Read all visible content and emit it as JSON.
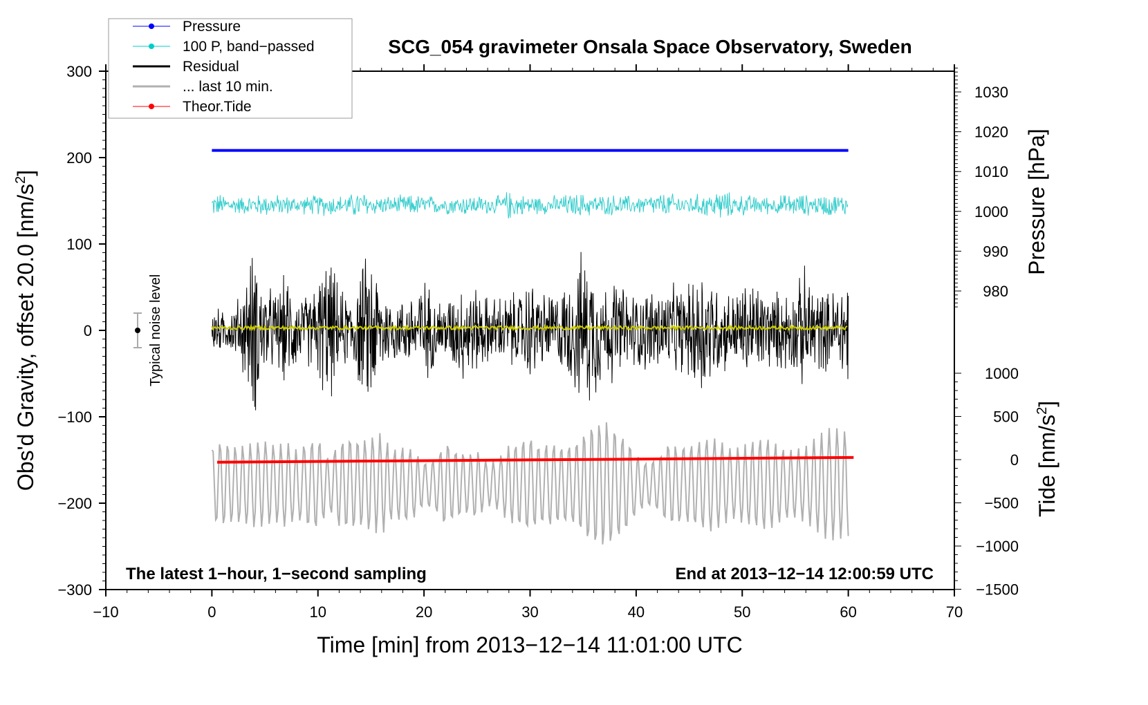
{
  "chart_data": {
    "type": "line",
    "title": "SCG_054 gravimeter Onsala Space Observatory, Sweden",
    "xlabel": "Time [min] from 2013−12−14 11:01:00 UTC",
    "ylabel": "Obs'd Gravity, offset 20.0 [nm/s",
    "ylabel_sup": "2",
    "ylabel_end": "]",
    "y2label_pressure": "Pressure [hPa]",
    "y2label_tide": "Tide [nm/s",
    "y2label_tide_sup": "2",
    "y2label_tide_end": "]",
    "annotation_left": "The latest 1−hour, 1−second sampling",
    "annotation_right": "End at 2013−12−14 12:00:59 UTC",
    "noise_label": "Typical noise level",
    "noise_bar": {
      "x": -7,
      "y": 0,
      "halfwidth": 20
    },
    "xlim": [
      -10,
      70
    ],
    "ylim": [
      -300,
      300
    ],
    "pressure_lim": [
      975,
      1035
    ],
    "tide_lim": [
      -1500,
      1000
    ],
    "xticks": [
      "−10",
      "0",
      "10",
      "20",
      "30",
      "40",
      "50",
      "60",
      "70"
    ],
    "xtick_values": [
      -10,
      0,
      10,
      20,
      30,
      40,
      50,
      60,
      70
    ],
    "yticks": [
      "300",
      "200",
      "100",
      "0",
      "−100",
      "−200",
      "−300"
    ],
    "ytick_values": [
      300,
      200,
      100,
      0,
      -100,
      -200,
      -300
    ],
    "pressure_ticks": [
      "1030",
      "1020",
      "1010",
      "1000",
      "990",
      "980"
    ],
    "pressure_tick_values": [
      1030,
      1020,
      1010,
      1000,
      990,
      980
    ],
    "tide_ticks": [
      "1000",
      "500",
      "0",
      "−500",
      "−1000",
      "−1500"
    ],
    "tide_tick_values": [
      1000,
      500,
      0,
      -500,
      -1000,
      -1500
    ],
    "legend": {
      "placement": "top-left",
      "entries": [
        {
          "label": "Pressure",
          "color": "#0000ff",
          "marker": true
        },
        {
          "label": "100 P, band−passed",
          "color": "#00cccc",
          "marker": true
        },
        {
          "label": "Residual",
          "color": "#000000",
          "marker": false
        },
        {
          "label": "... last 10 min.",
          "color": "#b0b0b0",
          "marker": false
        },
        {
          "label": "Theor.Tide",
          "color": "#ff0000",
          "marker": true
        }
      ]
    },
    "series": [
      {
        "name": "Pressure",
        "axis": "pressure",
        "color": "#0000ff",
        "x_range": [
          0,
          60
        ],
        "values_start_end": [
          1015.3,
          1015.3
        ]
      },
      {
        "name": "100 P, band-passed",
        "axis": "left",
        "color": "#33cccc",
        "x_range": [
          0,
          60
        ],
        "center": 145,
        "envelope": [
          15,
          15,
          12,
          12,
          14,
          15,
          14,
          13,
          12,
          12,
          14,
          15,
          13,
          14,
          20,
          14,
          12,
          12,
          13,
          14,
          13,
          12,
          12,
          13,
          14,
          13,
          12,
          12,
          20,
          14,
          13,
          12,
          12,
          14,
          15,
          16,
          14,
          13,
          14,
          13,
          12,
          14,
          15,
          16,
          14,
          13,
          15,
          16,
          22,
          15,
          14,
          13,
          12,
          12,
          14,
          15,
          14,
          13,
          15,
          14,
          14
        ]
      },
      {
        "name": "Residual",
        "axis": "left",
        "color": "#000000",
        "x_range": [
          0,
          60
        ],
        "center": 0,
        "envelope": [
          35,
          25,
          30,
          60,
          115,
          60,
          50,
          75,
          50,
          45,
          70,
          100,
          55,
          45,
          80,
          110,
          60,
          45,
          40,
          55,
          70,
          45,
          40,
          55,
          70,
          55,
          45,
          45,
          50,
          50,
          70,
          50,
          50,
          55,
          75,
          105,
          95,
          60,
          70,
          55,
          50,
          55,
          60,
          55,
          60,
          60,
          100,
          75,
          55,
          50,
          60,
          70,
          55,
          50,
          55,
          55,
          85,
          60,
          50,
          60,
          85
        ]
      },
      {
        "name": "Smoothed residual",
        "axis": "left",
        "color": "#cccc00",
        "x_range": [
          0,
          60
        ],
        "center": 3
      },
      {
        "name": "... last 10 min.",
        "axis": "left",
        "color": "#b0b0b0",
        "x_range": [
          0,
          60
        ],
        "center": -178,
        "envelope": [
          45,
          50,
          45,
          45,
          50,
          50,
          45,
          50,
          40,
          50,
          55,
          30,
          50,
          55,
          50,
          55,
          60,
          40,
          45,
          40,
          25,
          30,
          50,
          40,
          35,
          40,
          25,
          30,
          45,
          50,
          55,
          45,
          50,
          45,
          45,
          60,
          70,
          75,
          65,
          55,
          35,
          25,
          30,
          50,
          45,
          45,
          50,
          55,
          50,
          40,
          45,
          50,
          55,
          50,
          40,
          40,
          45,
          55,
          65,
          65,
          60
        ]
      },
      {
        "name": "Theor.Tide",
        "axis": "tide",
        "color": "#ff0000",
        "x_range": [
          0.5,
          60.5
        ],
        "values_start_end": [
          -30,
          25
        ]
      }
    ]
  }
}
